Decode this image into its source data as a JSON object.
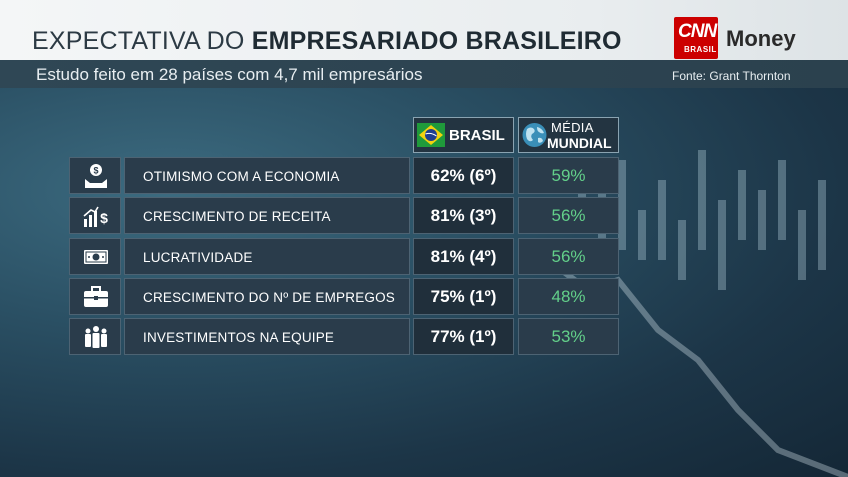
{
  "header": {
    "title_light": "EXPECTATIVA DO ",
    "title_bold": "EMPRESARIADO BRASILEIRO",
    "subtitle": "Estudo feito em 28 países com 4,7 mil empresários",
    "source": "Fonte: Grant Thornton"
  },
  "logo": {
    "cnn": "CNN",
    "cnn_sub": "BRASIL",
    "money": "Money"
  },
  "columns": {
    "brasil": "BRASIL",
    "mundo_line1": "MÉDIA",
    "mundo_line2": "MUNDIAL"
  },
  "rows": [
    {
      "label": "OTIMISMO COM A ECONOMIA",
      "brasil": "62% (6º)",
      "mundial": "59%",
      "icon": "money-hand-icon"
    },
    {
      "label": "CRESCIMENTO DE RECEITA",
      "brasil": "81% (3º)",
      "mundial": "56%",
      "icon": "revenue-growth-icon"
    },
    {
      "label": "LUCRATIVIDADE",
      "brasil": "81% (4º)",
      "mundial": "56%",
      "icon": "banknote-icon"
    },
    {
      "label": "CRESCIMENTO DO Nº DE EMPREGOS",
      "brasil": "75% (1º)",
      "mundial": "48%",
      "icon": "briefcase-icon"
    },
    {
      "label": "INVESTIMENTOS NA EQUIPE",
      "brasil": "77% (1º)",
      "mundial": "53%",
      "icon": "team-icon"
    }
  ],
  "colors": {
    "accent_green": "#63d08a",
    "cnn_red": "#cc0000",
    "cell_bg": "#2a3c4b"
  }
}
